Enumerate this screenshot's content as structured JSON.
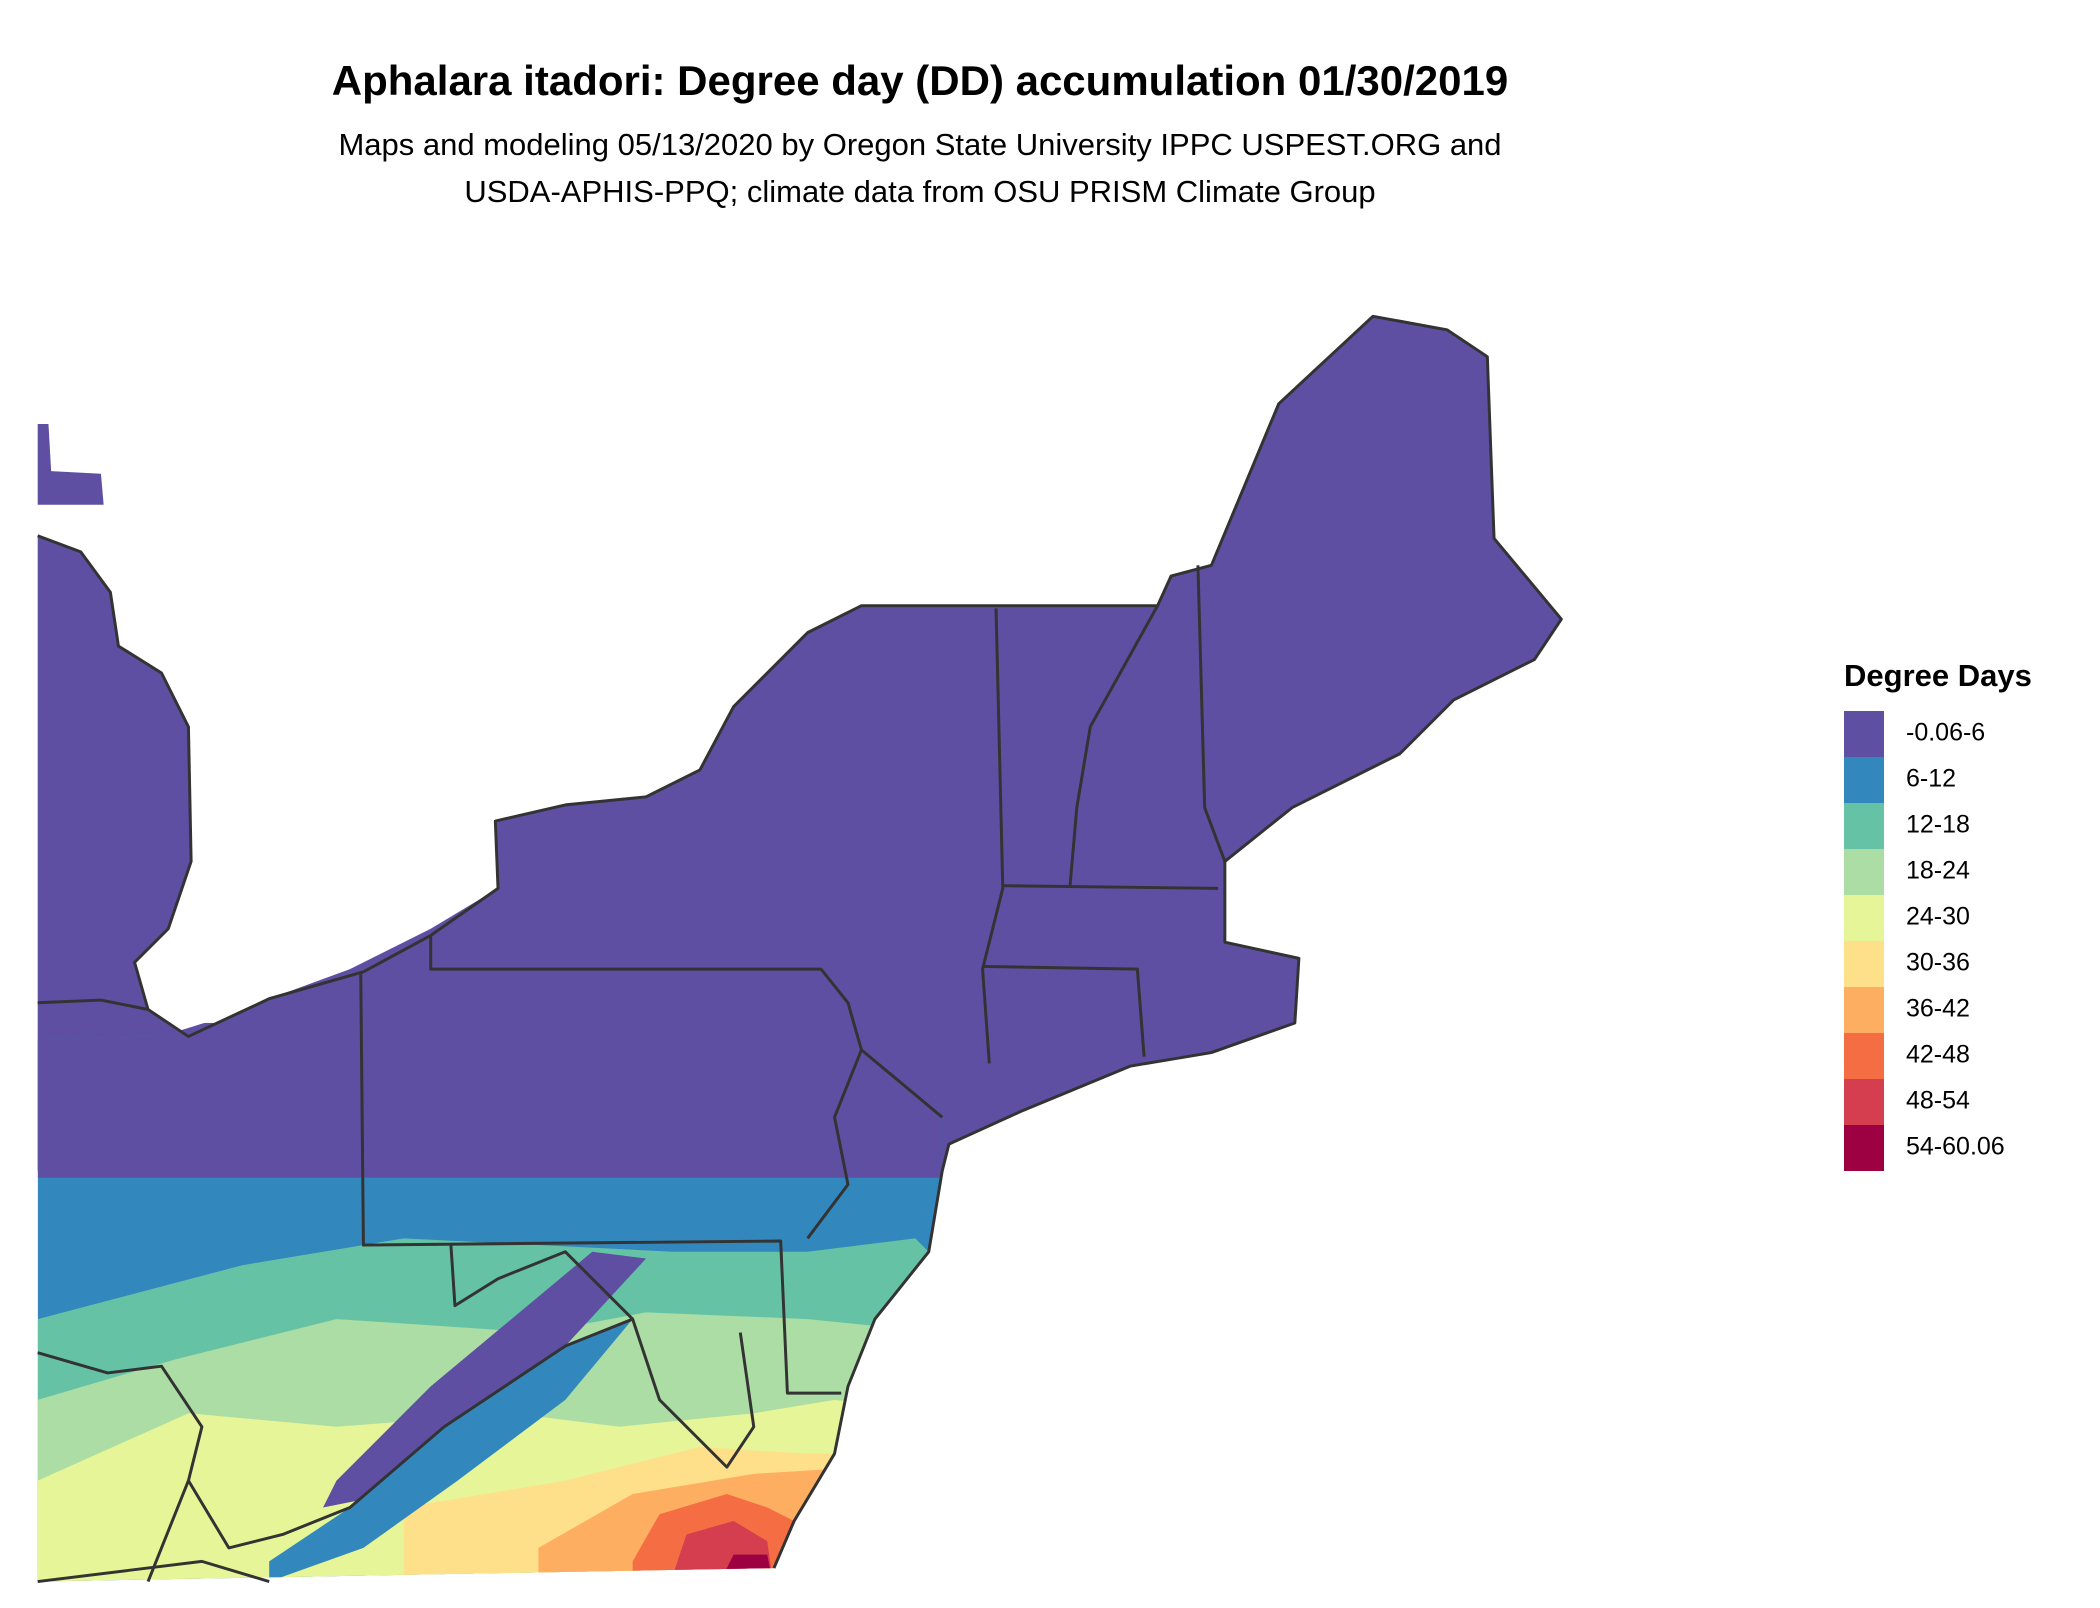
{
  "header": {
    "title": "Aphalara itadori: Degree day (DD) accumulation 01/30/2019",
    "subtitle": [
      "Maps and modeling 05/13/2020 by Oregon State University IPPC USPEST.ORG and",
      "USDA-APHIS-PPQ; climate data from OSU PRISM Climate Group"
    ]
  },
  "legend": {
    "title": "Degree Days",
    "items": [
      {
        "label": "-0.06-6",
        "color": "#5e4fa2"
      },
      {
        "label": "6-12",
        "color": "#3288bd"
      },
      {
        "label": "12-18",
        "color": "#66c2a5"
      },
      {
        "label": "18-24",
        "color": "#abdda4"
      },
      {
        "label": "24-30",
        "color": "#e6f598"
      },
      {
        "label": "30-36",
        "color": "#fee08b"
      },
      {
        "label": "36-42",
        "color": "#fdae61"
      },
      {
        "label": "42-48",
        "color": "#f46d43"
      },
      {
        "label": "48-54",
        "color": "#d53e4f"
      },
      {
        "label": "54-60.06",
        "color": "#9e0142"
      }
    ]
  }
}
